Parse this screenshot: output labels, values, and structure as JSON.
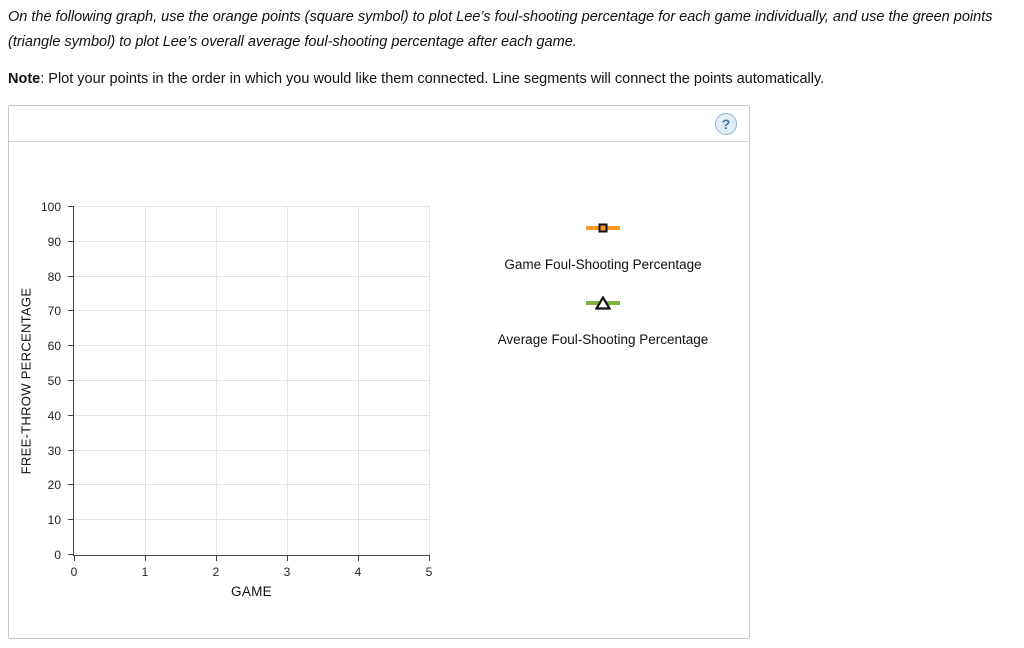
{
  "instructions": {
    "paragraph": "On the following graph, use the orange points (square symbol) to plot Lee’s foul-shooting percentage for each game individually, and use the green points (triangle symbol) to plot Lee’s overall average foul-shooting percentage after each game.",
    "note_label": "Note",
    "note_text": ": Plot your points in the order in which you would like them connected. Line segments will connect the points automatically."
  },
  "panel": {
    "help_icon": "?"
  },
  "chart_data": {
    "type": "scatter",
    "title": "",
    "xlabel": "GAME",
    "ylabel": "FREE-THROW PERCENTAGE",
    "xlim": [
      0,
      5
    ],
    "ylim": [
      0,
      100
    ],
    "x_ticks": [
      0,
      1,
      2,
      3,
      4,
      5
    ],
    "y_ticks": [
      0,
      10,
      20,
      30,
      40,
      50,
      60,
      70,
      80,
      90,
      100
    ],
    "grid": true,
    "legend_position": "right",
    "series": [
      {
        "name": "Game Foul-Shooting Percentage",
        "symbol": "square",
        "color": "#f59a23",
        "marker_border": "#111111",
        "points": []
      },
      {
        "name": "Average Foul-Shooting Percentage",
        "symbol": "triangle",
        "color": "#7cb342",
        "marker_border": "#111111",
        "marker_fill": "#ffffff",
        "points": []
      }
    ]
  }
}
